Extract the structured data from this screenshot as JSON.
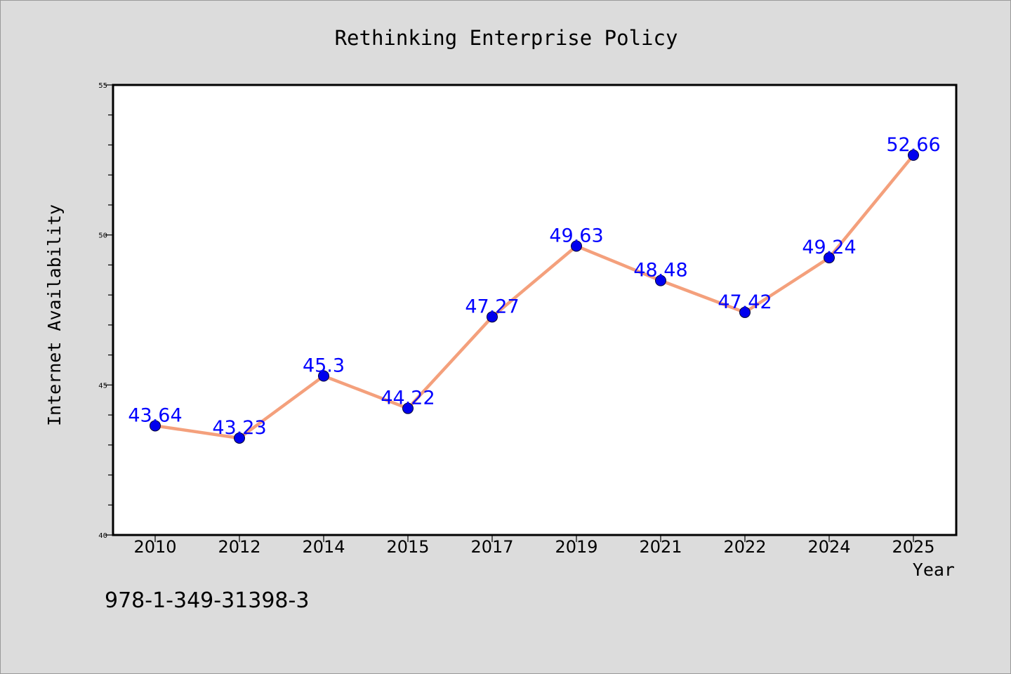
{
  "chart_data": {
    "type": "line",
    "title": "Rethinking Enterprise Policy",
    "xlabel": "Year",
    "ylabel": "Internet Availability",
    "categories": [
      "2010",
      "2012",
      "2014",
      "2015",
      "2017",
      "2019",
      "2021",
      "2022",
      "2024",
      "2025"
    ],
    "series": [
      {
        "values": [
          43.64,
          43.23,
          45.3,
          44.22,
          47.27,
          49.63,
          48.48,
          47.42,
          49.24,
          52.66
        ],
        "data_labels": [
          "43.64",
          "43.23",
          "45.3",
          "44.22",
          "47.27",
          "49.63",
          "48.48",
          "47.42",
          "49.24",
          "52.66"
        ],
        "line_color": "#f4a07c",
        "marker_color": "#0000ee",
        "label_color": "#0000ff"
      }
    ],
    "ylim": [
      40,
      55
    ],
    "y_ticks": [
      "40",
      "45",
      "50",
      "55"
    ],
    "grid": false,
    "legend": "none"
  },
  "footer": {
    "isbn": "978-1-349-31398-3"
  },
  "colors": {
    "background": "#dcdcdc",
    "plot_background": "#ffffff",
    "axis": "#000000"
  }
}
